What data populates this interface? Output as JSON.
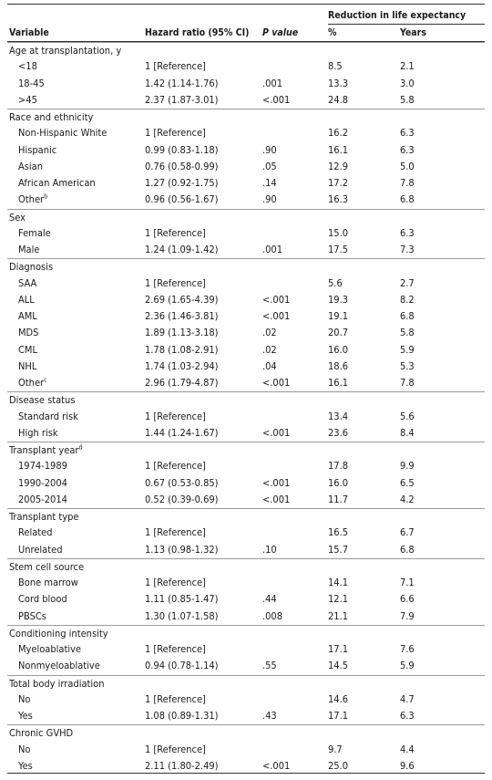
{
  "header": {
    "span_label": "Reduction in life expectancy",
    "variable": "Variable",
    "hazard_ratio": "Hazard ratio (95% CI)",
    "p_value": "P value",
    "percent": "%",
    "years": "Years"
  },
  "rows": [
    {
      "type": "section",
      "label": "Age at transplantation, y"
    },
    {
      "type": "data",
      "label": "<18",
      "hr": "1 [Reference]",
      "p": "",
      "pct": "8.5",
      "years": "2.1"
    },
    {
      "type": "data",
      "label": "18-45",
      "hr": "1.42 (1.14-1.76)",
      "p": ".001",
      "pct": "13.3",
      "years": "3.0"
    },
    {
      "type": "data",
      "label": ">45",
      "hr": "2.37 (1.87-3.01)",
      "p": "<.001",
      "pct": "24.8",
      "years": "5.8"
    },
    {
      "type": "section",
      "label": "Race and ethnicity"
    },
    {
      "type": "data",
      "label": "Non-Hispanic White",
      "hr": "1 [Reference]",
      "p": "",
      "pct": "16.2",
      "years": "6.3"
    },
    {
      "type": "data",
      "label": "Hispanic",
      "hr": "0.99 (0.83-1.18)",
      "p": ".90",
      "pct": "16.1",
      "years": "6.3"
    },
    {
      "type": "data",
      "label": "Asian",
      "hr": "0.76 (0.58-0.99)",
      "p": ".05",
      "pct": "12.9",
      "years": "5.0"
    },
    {
      "type": "data",
      "label": "African American",
      "hr": "1.27 (0.92-1.75)",
      "p": ".14",
      "pct": "17.2",
      "years": "7.8"
    },
    {
      "type": "data",
      "label": "Other",
      "sup": "b",
      "hr": "0.96 (0.56-1.67)",
      "p": ".90",
      "pct": "16.3",
      "years": "6.8"
    },
    {
      "type": "section",
      "label": "Sex"
    },
    {
      "type": "data",
      "label": "Female",
      "hr": "1 [Reference]",
      "p": "",
      "pct": "15.0",
      "years": "6.3"
    },
    {
      "type": "data",
      "label": "Male",
      "hr": "1.24 (1.09-1.42)",
      "p": ".001",
      "pct": "17.5",
      "years": "7.3"
    },
    {
      "type": "section",
      "label": "Diagnosis"
    },
    {
      "type": "data",
      "label": "SAA",
      "hr": "1 [Reference]",
      "p": "",
      "pct": "5.6",
      "years": "2.7"
    },
    {
      "type": "data",
      "label": "ALL",
      "hr": "2.69 (1.65-4.39)",
      "p": "<.001",
      "pct": "19.3",
      "years": "8.2"
    },
    {
      "type": "data",
      "label": "AML",
      "hr": "2.36 (1.46-3.81)",
      "p": "<.001",
      "pct": "19.1",
      "years": "6.8"
    },
    {
      "type": "data",
      "label": "MDS",
      "hr": "1.89 (1.13-3.18)",
      "p": ".02",
      "pct": "20.7",
      "years": "5.8"
    },
    {
      "type": "data",
      "label": "CML",
      "hr": "1.78 (1.08-2.91)",
      "p": ".02",
      "pct": "16.0",
      "years": "5.9"
    },
    {
      "type": "data",
      "label": "NHL",
      "hr": "1.74 (1.03-2.94)",
      "p": ".04",
      "pct": "18.6",
      "years": "5.3"
    },
    {
      "type": "data",
      "label": "Other",
      "sup": "c",
      "hr": "2.96 (1.79-4.87)",
      "p": "<.001",
      "pct": "16.1",
      "years": "7.8"
    },
    {
      "type": "section",
      "label": "Disease status"
    },
    {
      "type": "data",
      "label": "Standard risk",
      "hr": "1 [Reference]",
      "p": "",
      "pct": "13.4",
      "years": "5.6"
    },
    {
      "type": "data",
      "label": "High risk",
      "hr": "1.44 (1.24-1.67)",
      "p": "<.001",
      "pct": "23.6",
      "years": "8.4"
    },
    {
      "type": "section",
      "label": "Transplant year",
      "sup": "d"
    },
    {
      "type": "data",
      "label": "1974-1989",
      "hr": "1 [Reference]",
      "p": "",
      "pct": "17.8",
      "years": "9.9"
    },
    {
      "type": "data",
      "label": "1990-2004",
      "hr": "0.67 (0.53-0.85)",
      "p": "<.001",
      "pct": "16.0",
      "years": "6.5"
    },
    {
      "type": "data",
      "label": "2005-2014",
      "hr": "0.52 (0.39-0.69)",
      "p": "<.001",
      "pct": "11.7",
      "years": "4.2"
    },
    {
      "type": "section",
      "label": "Transplant type"
    },
    {
      "type": "data",
      "label": "Related",
      "hr": "1 [Reference]",
      "p": "",
      "pct": "16.5",
      "years": "6.7"
    },
    {
      "type": "data",
      "label": "Unrelated",
      "hr": "1.13 (0.98-1.32)",
      "p": ".10",
      "pct": "15.7",
      "years": "6.8"
    },
    {
      "type": "section",
      "label": "Stem cell source"
    },
    {
      "type": "data",
      "label": "Bone marrow",
      "hr": "1 [Reference]",
      "p": "",
      "pct": "14.1",
      "years": "7.1"
    },
    {
      "type": "data",
      "label": "Cord blood",
      "hr": "1.11 (0.85-1.47)",
      "p": ".44",
      "pct": "12.1",
      "years": "6.6"
    },
    {
      "type": "data",
      "label": "PBSCs",
      "hr": "1.30 (1.07-1.58)",
      "p": ".008",
      "pct": "21.1",
      "years": "7.9"
    },
    {
      "type": "section",
      "label": "Conditioning intensity"
    },
    {
      "type": "data",
      "label": "Myeloablative",
      "hr": "1 [Reference]",
      "p": "",
      "pct": "17.1",
      "years": "7.6"
    },
    {
      "type": "data",
      "label": "Nonmyeloablative",
      "hr": "0.94 (0.78-1.14)",
      "p": ".55",
      "pct": "14.5",
      "years": "5.9"
    },
    {
      "type": "section",
      "label": "Total body irradiation"
    },
    {
      "type": "data",
      "label": "No",
      "hr": "1 [Reference]",
      "p": "",
      "pct": "14.6",
      "years": "4.7"
    },
    {
      "type": "data",
      "label": "Yes",
      "hr": "1.08 (0.89-1.31)",
      "p": ".43",
      "pct": "17.1",
      "years": "6.3"
    },
    {
      "type": "section",
      "label": "Chronic GVHD"
    },
    {
      "type": "data",
      "label": "No",
      "hr": "1 [Reference]",
      "p": "",
      "pct": "9.7",
      "years": "4.4"
    },
    {
      "type": "data",
      "label": "Yes",
      "hr": "2.11 (1.80-2.49)",
      "p": "<.001",
      "pct": "25.0",
      "years": "9.6"
    }
  ]
}
